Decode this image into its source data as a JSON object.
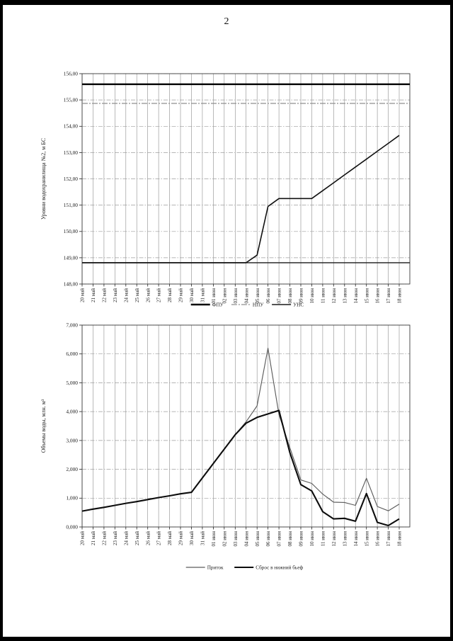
{
  "page": {
    "number": "2"
  },
  "colors": {
    "page_background": "#ffffff",
    "page_border": "#000000",
    "plot_border": "#3c3c3c",
    "grid_vertical": "#8c8c8c",
    "grid_horizontal": "#9e9e9e",
    "tick": "#222222",
    "text": "#1a1a1a"
  },
  "chart_data": [
    {
      "type": "line",
      "title": "",
      "ylabel": "Уровни водохранилища №2, м БС",
      "xlabel": "",
      "ylim": [
        148,
        156
      ],
      "grid": true,
      "legend_position": "bottom",
      "ytick_values": [
        148,
        149,
        150,
        151,
        152,
        153,
        154,
        155,
        156
      ],
      "ytick_labels": [
        "148,00",
        "149,00",
        "150,00",
        "151,00",
        "152,00",
        "153,00",
        "154,00",
        "155,00",
        "156,00"
      ],
      "categories": [
        "20 май",
        "21 май",
        "22 май",
        "23 май",
        "24 май",
        "25 май",
        "26 май",
        "27 май",
        "28 май",
        "29 май",
        "30 май",
        "31 май",
        "01 июн",
        "02 июн",
        "03 июн",
        "04 июн",
        "05 июн",
        "06 июн",
        "07 июн",
        "08 июн",
        "09 июн",
        "10 июн",
        "11 июн",
        "12 июн",
        "13 июн",
        "14 июн",
        "15 июн",
        "16 июн",
        "17 июн",
        "18 июн"
      ],
      "series": [
        {
          "name": "ФПУ",
          "in_legend": true,
          "constant": 155.6,
          "stroke": "#000000",
          "width": 2.4,
          "dash": ""
        },
        {
          "name": "НПУ",
          "in_legend": true,
          "constant": 154.87,
          "stroke": "#8f8f8f",
          "width": 1.2,
          "dash": "8 2 2 2"
        },
        {
          "name": "УНС",
          "in_legend": true,
          "constant": 148.81,
          "stroke": "#1a1a1a",
          "width": 1.4,
          "dash": ""
        },
        {
          "name": "",
          "note": "unlabeled measured reservoir level curve",
          "in_legend": false,
          "values": [
            148.81,
            148.81,
            148.81,
            148.81,
            148.81,
            148.81,
            148.81,
            148.81,
            148.81,
            148.81,
            148.81,
            148.81,
            148.81,
            148.81,
            148.81,
            148.81,
            149.1,
            150.95,
            151.25,
            151.25,
            151.25,
            151.25,
            151.55,
            151.85,
            152.15,
            152.45,
            152.75,
            153.05,
            153.35,
            153.65
          ],
          "stroke": "#111111",
          "width": 1.6,
          "dash": ""
        }
      ]
    },
    {
      "type": "line",
      "title": "",
      "ylabel": "Объемы воды, млн. м³",
      "xlabel": "",
      "ylim": [
        0,
        7
      ],
      "grid": true,
      "legend_position": "bottom",
      "ytick_values": [
        0,
        1,
        2,
        3,
        4,
        5,
        6,
        7
      ],
      "ytick_labels": [
        "0,000",
        "1,000",
        "2,000",
        "3,000",
        "4,000",
        "5,000",
        "6,000",
        "7,000"
      ],
      "categories": [
        "20 май",
        "21 май",
        "22 май",
        "23 май",
        "24 май",
        "25 май",
        "26 май",
        "27 май",
        "28 май",
        "29 май",
        "30 май",
        "31 май",
        "01 июн",
        "02 июн",
        "03 июн",
        "04 июн",
        "05 июн",
        "06 июн",
        "07 июн",
        "08 июн",
        "09 июн",
        "10 июн",
        "11 июн",
        "12 июн",
        "13 июн",
        "14 июн",
        "15 июн",
        "16 июн",
        "17 июн",
        "18 июн"
      ],
      "series": [
        {
          "name": "Приток",
          "in_legend": true,
          "values": [
            0.55,
            0.62,
            0.68,
            0.75,
            0.82,
            0.88,
            0.95,
            1.02,
            1.08,
            1.15,
            1.2,
            1.7,
            2.2,
            2.7,
            3.2,
            3.65,
            4.2,
            6.2,
            3.9,
            2.75,
            1.63,
            1.51,
            1.14,
            0.86,
            0.85,
            0.75,
            1.69,
            0.71,
            0.56,
            0.79
          ],
          "stroke": "#5c5c5c",
          "width": 1.15,
          "dash": ""
        },
        {
          "name": "Сброс в нижний бьеф",
          "in_legend": true,
          "values": [
            0.55,
            0.62,
            0.68,
            0.75,
            0.82,
            0.88,
            0.95,
            1.02,
            1.08,
            1.15,
            1.2,
            1.7,
            2.2,
            2.7,
            3.2,
            3.6,
            3.8,
            3.92,
            4.04,
            2.58,
            1.47,
            1.25,
            0.53,
            0.28,
            0.3,
            0.2,
            1.16,
            0.16,
            0.05,
            0.28
          ],
          "stroke": "#0d0d0d",
          "width": 2.1,
          "dash": ""
        }
      ]
    }
  ]
}
